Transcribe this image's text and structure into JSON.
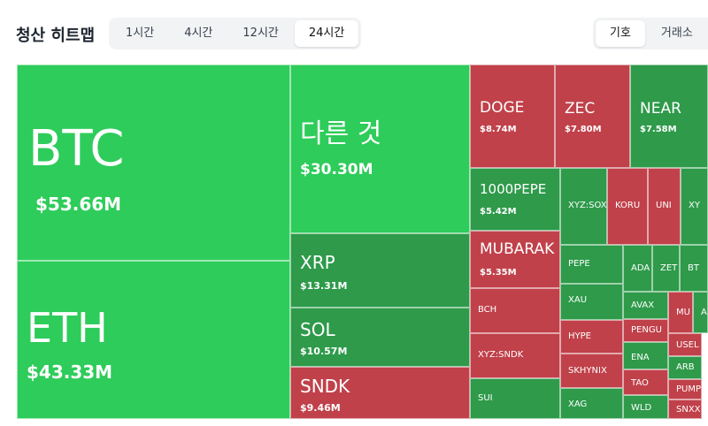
{
  "header": {
    "title": "청산 히트맵"
  },
  "tabs": [
    "1시간",
    "4시간",
    "12시간",
    "24시간"
  ],
  "active_tab": 3,
  "views": [
    "기호",
    "거래소"
  ],
  "active_view": 0,
  "tiles": [
    {
      "label": "BTC",
      "value": "$53.66M"
    },
    {
      "label": "ETH",
      "value": "$43.33M"
    },
    {
      "label": "다른 것",
      "value": "$30.30M"
    },
    {
      "label": "XRP",
      "value": "$13.31M"
    },
    {
      "label": "SOL",
      "value": "$10.57M"
    },
    {
      "label": "SNDK",
      "value": "$9.46M"
    },
    {
      "label": "DOGE",
      "value": "$8.74M"
    },
    {
      "label": "ZEC",
      "value": "$7.80M"
    },
    {
      "label": "NEAR",
      "value": "$7.58M"
    },
    {
      "label": "1000PEPE",
      "value": "$5.42M"
    },
    {
      "label": "XYZ:SOX"
    },
    {
      "label": "KORU"
    },
    {
      "label": "UNI"
    },
    {
      "label": "XY"
    },
    {
      "label": "MUBARAK",
      "value": "$5.35M"
    },
    {
      "label": "PEPE"
    },
    {
      "label": "ADA"
    },
    {
      "label": "ZET"
    },
    {
      "label": "BT"
    },
    {
      "label": "BCH"
    },
    {
      "label": "XAU"
    },
    {
      "label": "AVAX"
    },
    {
      "label": "MU"
    },
    {
      "label": "A"
    },
    {
      "label": "XYZ:SNDK"
    },
    {
      "label": "HYPE"
    },
    {
      "label": "PENGU"
    },
    {
      "label": "USEL"
    },
    {
      "label": "ENA"
    },
    {
      "label": "ARB"
    },
    {
      "label": "SKHYNIX"
    },
    {
      "label": "TAO"
    },
    {
      "label": "PUMP"
    },
    {
      "label": "SUI"
    },
    {
      "label": "XAG"
    },
    {
      "label": "WLD"
    },
    {
      "label": "SNXX"
    }
  ]
}
